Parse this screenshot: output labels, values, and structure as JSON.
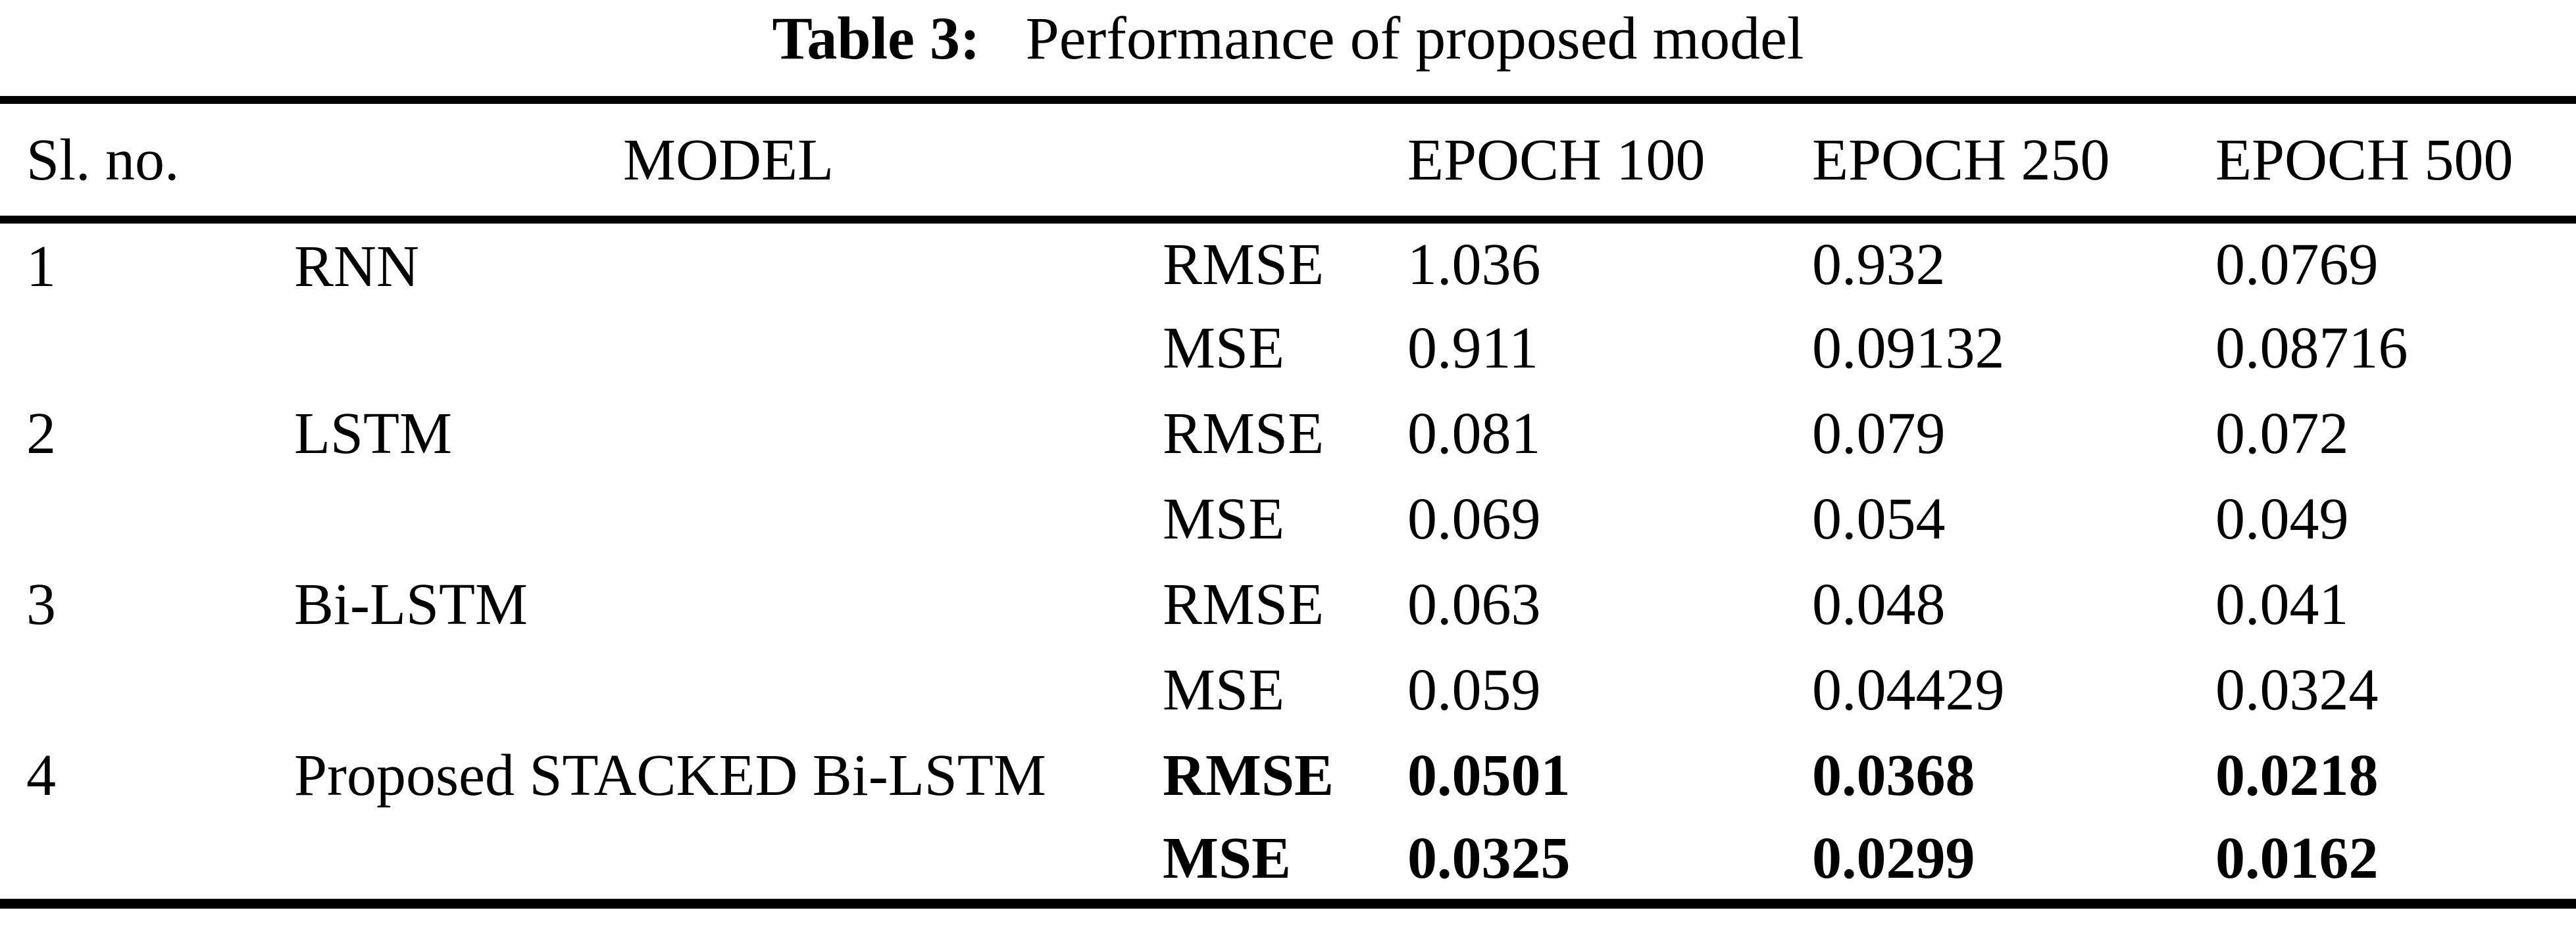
{
  "caption": {
    "label": "Table 3:",
    "text": "Performance of proposed model"
  },
  "table": {
    "headers": {
      "sl_no": "Sl. no.",
      "model": "MODEL",
      "metric": "",
      "epoch_100": "EPOCH 100",
      "epoch_250": "EPOCH 250",
      "epoch_500": "EPOCH 500"
    },
    "rows": [
      {
        "sl_no": "1",
        "model": "RNN",
        "metrics": [
          {
            "name": "RMSE",
            "bold": false,
            "values": [
              "1.036",
              "0.932",
              "0.0769"
            ]
          },
          {
            "name": "MSE",
            "bold": false,
            "values": [
              "0.911",
              "0.09132",
              "0.08716"
            ]
          }
        ]
      },
      {
        "sl_no": "2",
        "model": "LSTM",
        "metrics": [
          {
            "name": "RMSE",
            "bold": false,
            "values": [
              "0.081",
              "0.079",
              "0.072"
            ]
          },
          {
            "name": "MSE",
            "bold": false,
            "values": [
              "0.069",
              "0.054",
              "0.049"
            ]
          }
        ]
      },
      {
        "sl_no": "3",
        "model": "Bi-LSTM",
        "metrics": [
          {
            "name": "RMSE",
            "bold": false,
            "values": [
              "0.063",
              "0.048",
              "0.041"
            ]
          },
          {
            "name": "MSE",
            "bold": false,
            "values": [
              "0.059",
              "0.04429",
              "0.0324"
            ]
          }
        ]
      },
      {
        "sl_no": "4",
        "model": "Proposed STACKED Bi-LSTM",
        "metrics": [
          {
            "name": "RMSE",
            "bold": true,
            "values": [
              "0.0501",
              "0.0368",
              "0.0218"
            ]
          },
          {
            "name": "MSE",
            "bold": true,
            "values": [
              "0.0325",
              "0.0299",
              "0.0162"
            ]
          }
        ]
      }
    ]
  }
}
